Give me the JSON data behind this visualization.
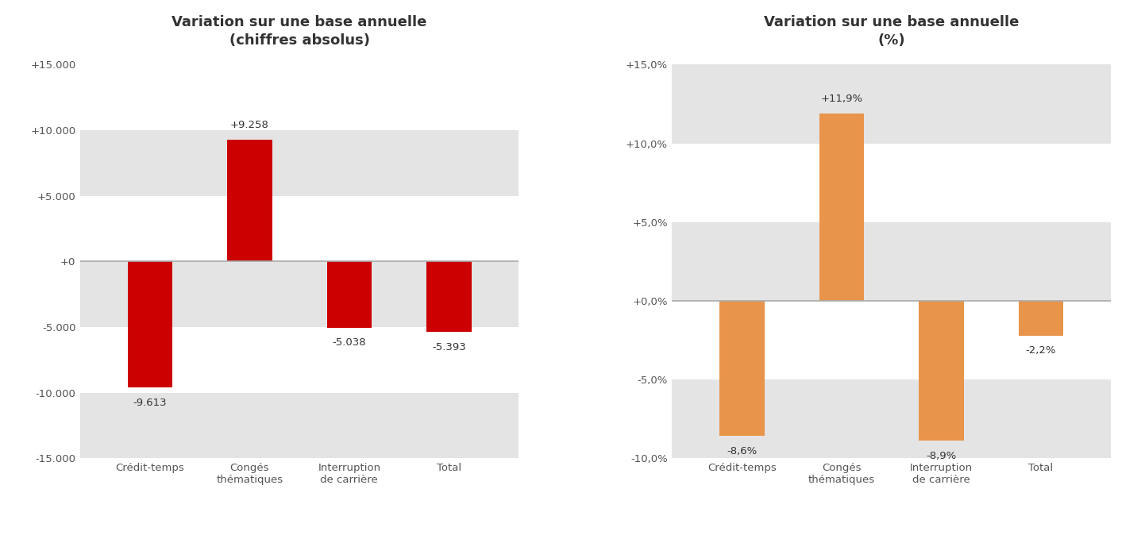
{
  "chart1": {
    "title": "Variation sur une base annuelle\n(chiffres absolus)",
    "categories": [
      "Crédit-temps",
      "Congés\nthématiques",
      "Interruption\nde carrière",
      "Total"
    ],
    "values": [
      -9613,
      9258,
      -5038,
      -5393
    ],
    "labels": [
      "-9.613",
      "+9.258",
      "-5.038",
      "-5.393"
    ],
    "bar_color": "#CC0000",
    "ylim": [
      -15000,
      15000
    ],
    "yticks": [
      -15000,
      -10000,
      -5000,
      0,
      5000,
      10000,
      15000
    ],
    "ytick_labels": [
      "-15.000",
      "-10.000",
      "-5.000",
      "+0",
      "+5.000",
      "+10.000",
      "+15.000"
    ]
  },
  "chart2": {
    "title": "Variation sur une base annuelle\n(%)",
    "categories": [
      "Crédit-temps",
      "Congés\nthématiques",
      "Interruption\nde carrière",
      "Total"
    ],
    "values": [
      -8.6,
      11.9,
      -8.9,
      -2.2
    ],
    "labels": [
      "-8,6%",
      "+11,9%",
      "-8,9%",
      "-2,2%"
    ],
    "bar_color": "#E8944A",
    "ylim": [
      -10.0,
      15.0
    ],
    "yticks": [
      -10.0,
      -5.0,
      0.0,
      5.0,
      10.0,
      15.0
    ],
    "ytick_labels": [
      "-10,0%",
      "-5,0%",
      "+0,0%",
      "+5,0%",
      "+10,0%",
      "+15,0%"
    ]
  },
  "background_color": "#ffffff",
  "stripe_color": "#e4e4e4",
  "zeroline_color": "#aaaaaa",
  "title_color": "#333333",
  "label_color": "#333333",
  "tick_color": "#555555",
  "title_fontsize": 13,
  "tick_fontsize": 9.5,
  "annotation_fontsize": 9.5
}
